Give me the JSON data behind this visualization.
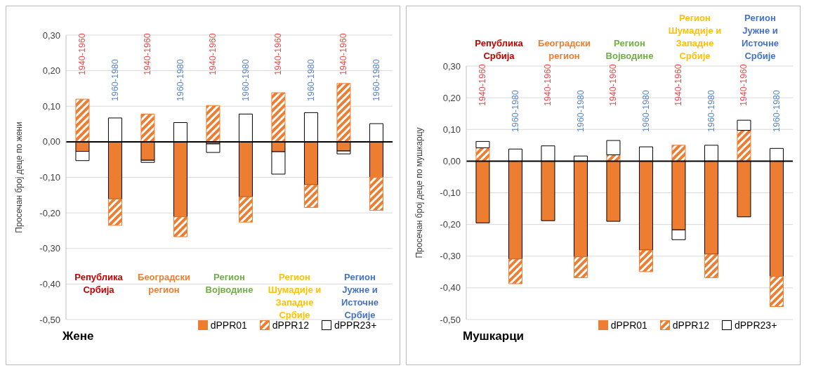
{
  "chart_data": [
    {
      "type": "bar",
      "title": "Жене",
      "ylabel": "Просечан број деце по жени",
      "stacked": true,
      "legend": "bottom",
      "grid": "y",
      "categories": [
        "1940-1960",
        "1960-1980",
        "1940-1960",
        "1960-1980",
        "1940-1960",
        "1960-1980",
        "1940-1960",
        "1960-1980",
        "1940-1960",
        "1960-1980"
      ],
      "series": [
        {
          "name": "dPPR01",
          "color": "#ed7d31",
          "values": [
            -0.027,
            -0.161,
            -0.052,
            -0.211,
            -0.006,
            -0.155,
            -0.028,
            -0.121,
            -0.026,
            -0.1
          ]
        },
        {
          "name": "dPPR12",
          "color": "#ed7d31",
          "values": [
            0.12,
            -0.074,
            0.078,
            -0.056,
            0.102,
            -0.071,
            0.138,
            -0.064,
            0.164,
            -0.093
          ]
        },
        {
          "name": "dPPR23+",
          "color": "#ffffff",
          "values": [
            -0.026,
            0.067,
            -0.006,
            0.054,
            -0.024,
            0.078,
            -0.063,
            0.082,
            -0.008,
            0.051
          ]
        }
      ],
      "ylim": [
        -0.5,
        0.3
      ],
      "yticks": [
        {
          "value": -0.5,
          "label": "-0,50"
        },
        {
          "value": -0.4,
          "label": "-0,40"
        },
        {
          "value": -0.3,
          "label": "-0,30"
        },
        {
          "value": -0.2,
          "label": "-0,20"
        },
        {
          "value": -0.1,
          "label": "-0,10"
        },
        {
          "value": 0,
          "label": "0,00"
        },
        {
          "value": 0.1,
          "label": "0,10"
        },
        {
          "value": 0.2,
          "label": "0,20"
        },
        {
          "value": 0.3,
          "label": "0,30"
        }
      ],
      "annotations": [
        "Република Србија",
        "Београдски регион",
        "Регион Војводине",
        "Регион Шумадије и  Западне Србије",
        "Регион Јужне и Источне Србије"
      ]
    },
    {
      "type": "bar",
      "title": "Мушкарци",
      "ylabel": "Просечан број деце по мушкарцу",
      "stacked": true,
      "legend": "bottom",
      "grid": "y",
      "categories": [
        "1940-1960",
        "1960-1980",
        "1940-1960",
        "1960-1980",
        "1940-1960",
        "1960-1980",
        "1940-1960",
        "1960-1980",
        "1940-1960",
        "1960-1980"
      ],
      "series": [
        {
          "name": "dPPR01",
          "color": "#ed7d31",
          "values": [
            -0.195,
            -0.309,
            -0.188,
            -0.302,
            -0.19,
            -0.281,
            -0.217,
            -0.294,
            -0.176,
            -0.364
          ]
        },
        {
          "name": "dPPR12",
          "color": "#ed7d31",
          "values": [
            0.042,
            -0.078,
            0,
            -0.066,
            0.02,
            -0.068,
            0.05,
            -0.074,
            0.097,
            -0.095
          ]
        },
        {
          "name": "dPPR23+",
          "color": "#ffffff",
          "values": [
            0.02,
            0.038,
            0.048,
            0.016,
            0.045,
            0.045,
            -0.031,
            0.05,
            0.032,
            0.04
          ]
        }
      ],
      "ylim": [
        -0.5,
        0.3
      ],
      "yticks": [
        {
          "value": -0.5,
          "label": "-0,50"
        },
        {
          "value": -0.4,
          "label": "-0,40"
        },
        {
          "value": -0.3,
          "label": "-0,30"
        },
        {
          "value": -0.2,
          "label": "-0,20"
        },
        {
          "value": -0.1,
          "label": "-0,10"
        },
        {
          "value": 0,
          "label": "0,00"
        },
        {
          "value": 0.1,
          "label": "0,10"
        },
        {
          "value": 0.2,
          "label": "0,20"
        },
        {
          "value": 0.3,
          "label": "0,30"
        }
      ],
      "annotations": [
        "Република Србија",
        "Београдски регион",
        "Регион Војводине",
        "Регион Шумадије и  Западне Србије",
        "Регион Јужне и Источне Србије"
      ]
    }
  ]
}
